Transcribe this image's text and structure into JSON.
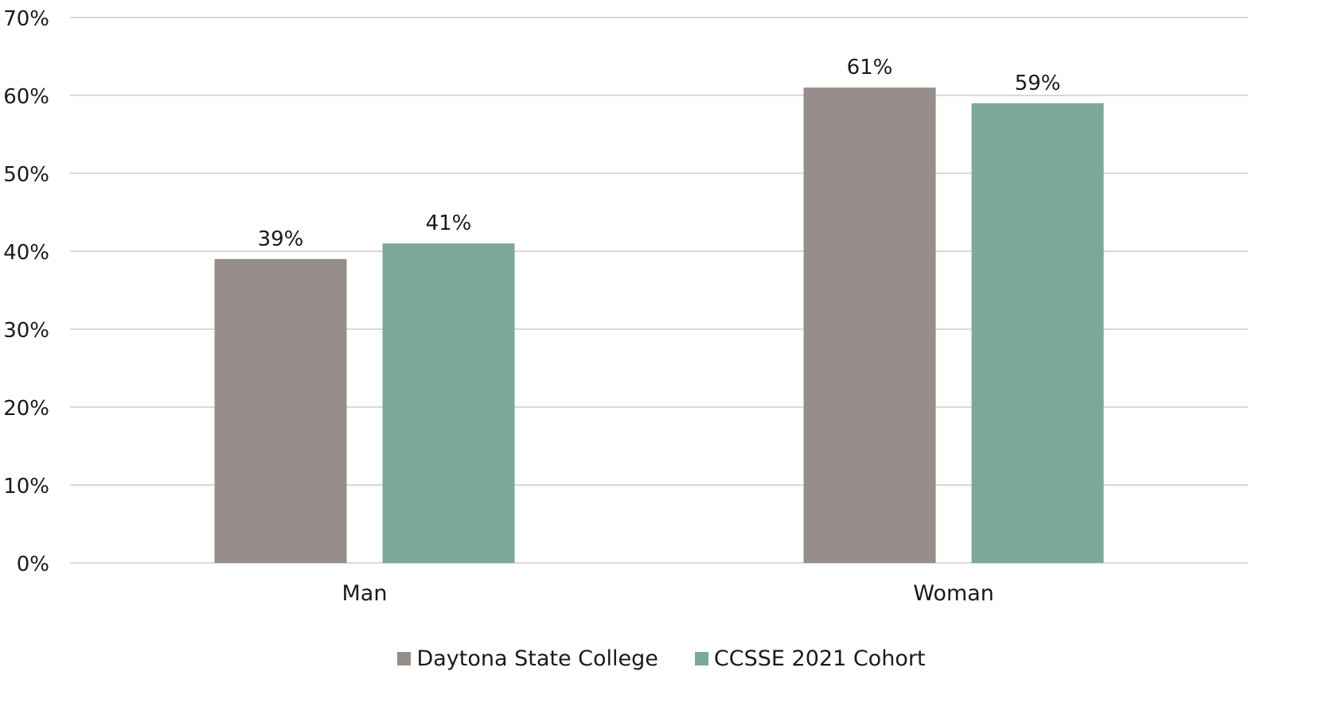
{
  "colors": {
    "series_1": "#978d8a",
    "series_2": "#7ca89c",
    "grid": "#d9d9d9"
  },
  "chart_data": {
    "type": "bar",
    "categories": [
      "Man",
      "Woman"
    ],
    "series": [
      {
        "name": "Daytona State College",
        "values": [
          39,
          61
        ],
        "labels": [
          "39%",
          "61%"
        ]
      },
      {
        "name": "CCSSE 2021 Cohort",
        "values": [
          41,
          59
        ],
        "labels": [
          "41%",
          "59%"
        ]
      }
    ],
    "y_ticks": [
      "0%",
      "10%",
      "20%",
      "30%",
      "40%",
      "50%",
      "60%",
      "70%"
    ],
    "ylim": [
      0,
      70
    ],
    "grid": true,
    "legend": "bottom"
  }
}
